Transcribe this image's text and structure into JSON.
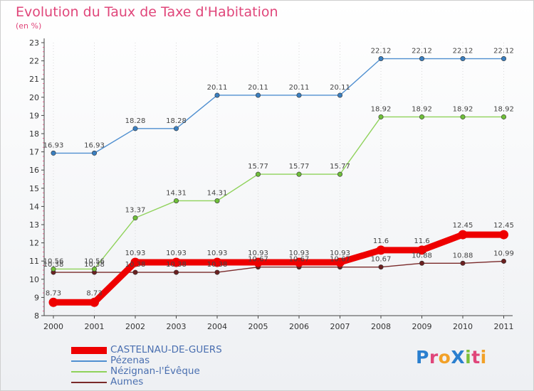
{
  "title": "Evolution du Taux de Taxe d'Habitation",
  "subtitle": "(en %)",
  "logo": {
    "text": "ProXiti",
    "letters": [
      {
        "ch": "P",
        "color": "#2a7fcf"
      },
      {
        "ch": "r",
        "color": "#e0467a"
      },
      {
        "ch": "o",
        "color": "#f2a128"
      },
      {
        "ch": "X",
        "color": "#2a7fcf"
      },
      {
        "ch": "i",
        "color": "#7bbf3a"
      },
      {
        "ch": "t",
        "color": "#e0467a"
      },
      {
        "ch": "i",
        "color": "#f2a128"
      }
    ]
  },
  "chart_data": {
    "type": "line",
    "title": "Evolution du Taux de Taxe d'Habitation",
    "ylabel": "(en %)",
    "xlabel": "",
    "ylim": [
      8,
      23
    ],
    "yticks": [
      8,
      9,
      10,
      11,
      12,
      13,
      14,
      15,
      16,
      17,
      18,
      19,
      20,
      21,
      22,
      23
    ],
    "categories": [
      "2000",
      "2001",
      "2002",
      "2003",
      "2004",
      "2005",
      "2006",
      "2007",
      "2008",
      "2009",
      "2010",
      "2011"
    ],
    "series": [
      {
        "name": "CASTELNAU-DE-GUERS",
        "color": "#ee0000",
        "highlight": true,
        "values": [
          8.73,
          8.73,
          10.93,
          10.93,
          10.93,
          10.93,
          10.93,
          10.93,
          11.6,
          11.6,
          12.45,
          12.45
        ],
        "labels": [
          "8.73",
          "8.73",
          "10.93",
          "10.93",
          "10.93",
          "10.93",
          "10.93",
          "10.93",
          "11.6",
          "11.6",
          "12.45",
          "12.45"
        ]
      },
      {
        "name": "Pézenas",
        "color": "#4f8fd0",
        "marker": "#3a7fc0",
        "values": [
          16.93,
          16.93,
          18.28,
          18.28,
          20.11,
          20.11,
          20.11,
          20.11,
          22.12,
          22.12,
          22.12,
          22.12
        ],
        "labels": [
          "16.93",
          "16.93",
          "18.28",
          "18.28",
          "20.11",
          "20.11",
          "20.11",
          "20.11",
          "22.12",
          "22.12",
          "22.12",
          "22.12"
        ]
      },
      {
        "name": "Nézignan-l'Évêque",
        "color": "#8fd25a",
        "marker": "#6fbf3a",
        "values": [
          10.56,
          10.56,
          13.37,
          14.31,
          14.31,
          15.77,
          15.77,
          15.77,
          18.92,
          18.92,
          18.92,
          18.92
        ],
        "labels": [
          "10.56",
          "10.56",
          "13.37",
          "14.31",
          "14.31",
          "15.77",
          "15.77",
          "15.77",
          "18.92",
          "18.92",
          "18.92",
          "18.92"
        ]
      },
      {
        "name": "Aumes",
        "color": "#7a2a2a",
        "marker": "#6b2020",
        "values": [
          10.38,
          10.38,
          10.38,
          10.38,
          10.38,
          10.67,
          10.67,
          10.67,
          10.67,
          10.88,
          10.88,
          10.99
        ],
        "labels": [
          "10.38",
          "10.38",
          "10.38",
          "10.38",
          "10.38",
          "10.67",
          "10.67",
          "10.67",
          "10.67",
          "10.88",
          "10.88",
          "10.99"
        ]
      }
    ]
  }
}
